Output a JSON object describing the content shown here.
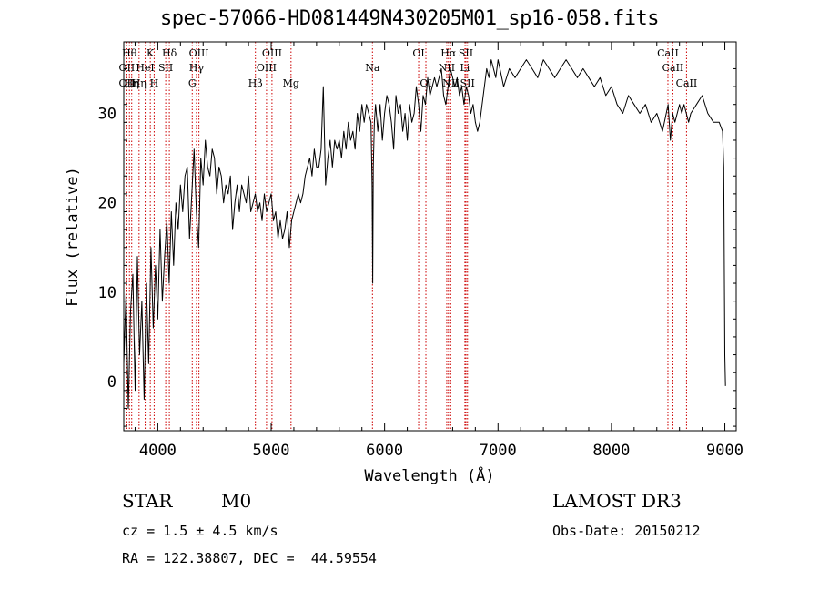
{
  "chart_data": {
    "type": "line",
    "title": "spec-57066-HD081449N430205M01_sp16-058.fits",
    "xlabel": "Wavelength (Å)",
    "ylabel": "Flux (relative)",
    "xlim": [
      3700,
      9100
    ],
    "ylim": [
      -5.5,
      38
    ],
    "xticks": [
      4000,
      5000,
      6000,
      7000,
      8000,
      9000
    ],
    "yticks": [
      0,
      10,
      20,
      30
    ],
    "grid": false,
    "series": [
      {
        "name": "",
        "x": [
          3700,
          3720,
          3740,
          3760,
          3780,
          3800,
          3820,
          3840,
          3860,
          3880,
          3900,
          3920,
          3940,
          3960,
          3980,
          4000,
          4020,
          4040,
          4060,
          4080,
          4100,
          4120,
          4140,
          4160,
          4180,
          4200,
          4220,
          4240,
          4260,
          4280,
          4300,
          4320,
          4340,
          4360,
          4380,
          4400,
          4420,
          4440,
          4460,
          4480,
          4500,
          4520,
          4540,
          4560,
          4580,
          4600,
          4620,
          4640,
          4660,
          4680,
          4700,
          4720,
          4740,
          4760,
          4780,
          4800,
          4820,
          4840,
          4860,
          4880,
          4900,
          4920,
          4940,
          4960,
          4980,
          5000,
          5020,
          5040,
          5060,
          5080,
          5100,
          5120,
          5140,
          5160,
          5180,
          5200,
          5220,
          5240,
          5260,
          5280,
          5300,
          5320,
          5340,
          5360,
          5380,
          5400,
          5420,
          5440,
          5460,
          5480,
          5500,
          5520,
          5540,
          5560,
          5580,
          5600,
          5620,
          5640,
          5660,
          5680,
          5700,
          5720,
          5740,
          5760,
          5780,
          5800,
          5820,
          5840,
          5860,
          5880,
          5890,
          5895,
          5900,
          5910,
          5920,
          5940,
          5960,
          5980,
          6000,
          6020,
          6040,
          6060,
          6080,
          6100,
          6120,
          6140,
          6160,
          6180,
          6200,
          6220,
          6240,
          6260,
          6280,
          6300,
          6320,
          6340,
          6360,
          6380,
          6400,
          6420,
          6440,
          6460,
          6480,
          6500,
          6520,
          6540,
          6560,
          6580,
          6600,
          6620,
          6640,
          6660,
          6680,
          6700,
          6720,
          6740,
          6760,
          6780,
          6800,
          6820,
          6840,
          6860,
          6880,
          6900,
          6920,
          6940,
          6960,
          6980,
          7000,
          7050,
          7100,
          7150,
          7200,
          7250,
          7300,
          7350,
          7400,
          7450,
          7500,
          7550,
          7600,
          7650,
          7700,
          7750,
          7800,
          7850,
          7900,
          7950,
          8000,
          8050,
          8100,
          8150,
          8200,
          8250,
          8300,
          8350,
          8400,
          8450,
          8500,
          8520,
          8540,
          8560,
          8580,
          8600,
          8620,
          8640,
          8660,
          8680,
          8700,
          8750,
          8800,
          8850,
          8900,
          8950,
          8980,
          8990,
          9000,
          9005
        ],
        "y": [
          2,
          10,
          -3,
          8,
          12,
          -1,
          14,
          3,
          9,
          -2,
          11,
          2,
          15,
          6,
          13,
          7,
          17,
          9,
          14,
          18,
          11,
          19,
          13,
          20,
          17,
          22,
          19,
          23,
          24,
          16,
          21,
          26,
          19,
          15,
          25,
          22,
          27,
          24,
          23,
          26,
          25,
          21,
          24,
          23,
          20,
          22,
          21,
          23,
          17,
          20,
          22,
          19,
          22,
          21,
          20,
          23,
          19,
          20,
          21,
          19,
          20,
          18,
          21,
          19,
          20,
          21,
          18,
          19,
          16,
          18,
          16,
          17,
          19,
          15,
          18,
          19,
          20,
          21,
          20,
          21,
          23,
          24,
          25,
          23,
          26,
          24,
          24,
          26,
          33,
          22,
          25,
          27,
          24,
          27,
          26,
          27,
          25,
          28,
          26,
          29,
          27,
          28,
          26,
          30,
          28,
          31,
          29,
          31,
          30,
          29,
          22,
          11,
          24,
          29,
          31,
          28,
          31,
          27,
          30,
          32,
          31,
          29,
          26,
          32,
          30,
          31,
          28,
          30,
          27,
          31,
          29,
          30,
          33,
          31,
          28,
          32,
          31,
          34,
          32,
          33,
          34,
          33,
          34,
          35,
          32,
          31,
          33,
          35,
          34,
          33,
          34,
          32,
          33,
          31,
          33,
          32,
          30,
          31,
          29,
          28,
          29,
          31,
          33,
          35,
          34,
          36,
          35,
          34,
          36,
          33,
          35,
          34,
          35,
          36,
          35,
          34,
          36,
          35,
          34,
          35,
          36,
          35,
          34,
          35,
          34,
          33,
          34,
          32,
          33,
          31,
          30,
          32,
          31,
          30,
          31,
          29,
          30,
          28,
          31,
          27,
          30,
          29,
          30,
          31,
          30,
          31,
          30,
          29,
          30,
          31,
          32,
          30,
          29,
          29,
          28,
          24,
          3,
          -0.5
        ]
      }
    ],
    "line_marks": [
      {
        "x": 3727,
        "label": "OII",
        "row": 2
      },
      {
        "x": 3727,
        "label": "OII",
        "row": 3
      },
      {
        "x": 3750,
        "label": "Hθ",
        "row": 1
      },
      {
        "x": 3770,
        "label": "Hη",
        "row": 3
      },
      {
        "x": 3835,
        "label": "Hη",
        "row": 3
      },
      {
        "x": 3889,
        "label": "HeI",
        "row": 2
      },
      {
        "x": 3934,
        "label": "K",
        "row": 1
      },
      {
        "x": 3968,
        "label": "H",
        "row": 3
      },
      {
        "x": 4070,
        "label": "SII",
        "row": 2
      },
      {
        "x": 4102,
        "label": "Hδ",
        "row": 1
      },
      {
        "x": 4304,
        "label": "G",
        "row": 3
      },
      {
        "x": 4341,
        "label": "Hγ",
        "row": 2
      },
      {
        "x": 4363,
        "label": "OIII",
        "row": 1
      },
      {
        "x": 4861,
        "label": "Hβ",
        "row": 3
      },
      {
        "x": 4959,
        "label": "OIII",
        "row": 2
      },
      {
        "x": 5007,
        "label": "OIII",
        "row": 1
      },
      {
        "x": 5175,
        "label": "Mg",
        "row": 3
      },
      {
        "x": 5893,
        "label": "Na",
        "row": 2
      },
      {
        "x": 6300,
        "label": "OI",
        "row": 1
      },
      {
        "x": 6364,
        "label": "OI",
        "row": 3
      },
      {
        "x": 6548,
        "label": "NII",
        "row": 2
      },
      {
        "x": 6563,
        "label": "Hα",
        "row": 1
      },
      {
        "x": 6583,
        "label": "NII",
        "row": 3
      },
      {
        "x": 6708,
        "label": "Li",
        "row": 2
      },
      {
        "x": 6717,
        "label": "SII",
        "row": 1
      },
      {
        "x": 6731,
        "label": "SII",
        "row": 3
      },
      {
        "x": 8498,
        "label": "CaII",
        "row": 1
      },
      {
        "x": 8542,
        "label": "CaII",
        "row": 2
      },
      {
        "x": 8662,
        "label": "CaII",
        "row": 3
      }
    ]
  },
  "info": {
    "class": "STAR",
    "subclass": "M0",
    "survey": "LAMOST DR3",
    "cz": "cz = 1.5 ± 4.5 km/s",
    "obs_date": "Obs-Date: 20150212",
    "coords": "RA = 122.38807, DEC =  44.59554"
  },
  "colors": {
    "spectrum": "#000000",
    "line_marker": "#cc0000",
    "axes": "#000000",
    "background": "#ffffff"
  }
}
